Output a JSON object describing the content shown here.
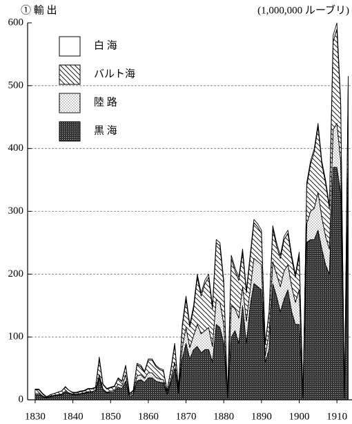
{
  "chart_data": {
    "type": "stacked_area",
    "title": "① 輸 出",
    "subtitle": "(1,000,000 ルーブリ)",
    "x": [
      1830,
      1831,
      1832,
      1833,
      1834,
      1835,
      1836,
      1837,
      1838,
      1839,
      1840,
      1841,
      1842,
      1843,
      1844,
      1845,
      1846,
      1847,
      1848,
      1849,
      1850,
      1851,
      1852,
      1853,
      1854,
      1855,
      1856,
      1857,
      1858,
      1859,
      1860,
      1861,
      1862,
      1863,
      1864,
      1865,
      1866,
      1867,
      1868,
      1869,
      1870,
      1871,
      1872,
      1873,
      1874,
      1875,
      1876,
      1877,
      1878,
      1879,
      1880,
      1881,
      1882,
      1883,
      1884,
      1885,
      1886,
      1887,
      1888,
      1889,
      1890,
      1891,
      1892,
      1893,
      1894,
      1895,
      1896,
      1897,
      1898,
      1899,
      1900,
      1901,
      1902,
      1903,
      1904,
      1905,
      1906,
      1907,
      1908,
      1909,
      1910,
      1911,
      1912,
      1913
    ],
    "series": [
      {
        "name": "白 海",
        "color": "#ffffff",
        "pattern": "solid",
        "values": [
          1,
          1,
          1,
          1,
          0,
          0,
          0,
          0,
          1,
          0,
          1,
          1,
          1,
          1,
          1,
          1,
          1,
          3,
          1,
          1,
          1,
          1,
          1,
          1,
          1,
          1,
          1,
          2,
          2,
          1,
          2,
          2,
          2,
          2,
          2,
          1,
          2,
          3,
          1,
          4,
          5,
          4,
          5,
          5,
          5,
          5,
          5,
          5,
          5,
          5,
          5,
          0,
          5,
          5,
          5,
          5,
          5,
          5,
          5,
          5,
          5,
          2,
          3,
          5,
          5,
          5,
          5,
          5,
          5,
          5,
          5,
          0,
          5,
          5,
          5,
          5,
          5,
          5,
          5,
          10,
          10,
          5,
          0,
          10
        ]
      },
      {
        "name": "バルト海",
        "color": "#ffffff",
        "pattern": "hatch",
        "values": [
          6,
          6,
          3,
          1,
          2,
          3,
          4,
          5,
          6,
          4,
          2,
          2,
          3,
          3,
          4,
          4,
          4,
          25,
          7,
          5,
          5,
          6,
          9,
          7,
          14,
          2,
          3,
          18,
          13,
          10,
          20,
          20,
          17,
          15,
          14,
          4,
          15,
          27,
          6,
          33,
          45,
          33,
          43,
          75,
          60,
          75,
          80,
          60,
          90,
          90,
          65,
          1,
          75,
          60,
          60,
          55,
          45,
          50,
          57,
          55,
          50,
          18,
          32,
          52,
          45,
          45,
          50,
          50,
          45,
          40,
          55,
          1,
          60,
          75,
          90,
          105,
          85,
          85,
          65,
          140,
          150,
          90,
          1,
          125
        ]
      },
      {
        "name": "陸 路",
        "color": "#ffffff",
        "pattern": "dots",
        "values": [
          2,
          2,
          1,
          0,
          1,
          1,
          1,
          1,
          2,
          1,
          1,
          1,
          1,
          1,
          1,
          1,
          2,
          5,
          2,
          1,
          2,
          2,
          5,
          4,
          10,
          2,
          3,
          8,
          8,
          6,
          8,
          8,
          6,
          5,
          5,
          2,
          5,
          10,
          3,
          18,
          25,
          18,
          22,
          35,
          30,
          30,
          35,
          25,
          40,
          40,
          30,
          1,
          50,
          35,
          40,
          30,
          35,
          25,
          40,
          40,
          40,
          10,
          25,
          35,
          35,
          40,
          45,
          40,
          40,
          35,
          55,
          1,
          30,
          45,
          50,
          60,
          50,
          45,
          40,
          60,
          70,
          50,
          1,
          80
        ]
      },
      {
        "name": "黒 海",
        "color": "#333333",
        "pattern": "crosshatch",
        "values": [
          8,
          8,
          5,
          3,
          5,
          6,
          7,
          8,
          12,
          10,
          8,
          8,
          9,
          10,
          12,
          12,
          13,
          35,
          15,
          11,
          12,
          13,
          20,
          18,
          30,
          5,
          8,
          30,
          32,
          28,
          35,
          35,
          30,
          28,
          27,
          8,
          28,
          50,
          10,
          65,
          90,
          65,
          80,
          85,
          75,
          80,
          80,
          60,
          120,
          115,
          90,
          3,
          100,
          110,
          90,
          150,
          90,
          150,
          185,
          180,
          175,
          60,
          80,
          185,
          165,
          140,
          160,
          175,
          140,
          120,
          120,
          3,
          250,
          255,
          255,
          270,
          240,
          215,
          200,
          370,
          370,
          330,
          3,
          300
        ]
      }
    ],
    "xlim": [
      1828,
      1914
    ],
    "xticks": [
      1830,
      1840,
      1850,
      1860,
      1870,
      1880,
      1890,
      1900,
      1910
    ],
    "ylim": [
      0,
      600
    ],
    "yticks": [
      0,
      100,
      200,
      300,
      400,
      500,
      600
    ],
    "grid": true,
    "legend": "upper left"
  }
}
